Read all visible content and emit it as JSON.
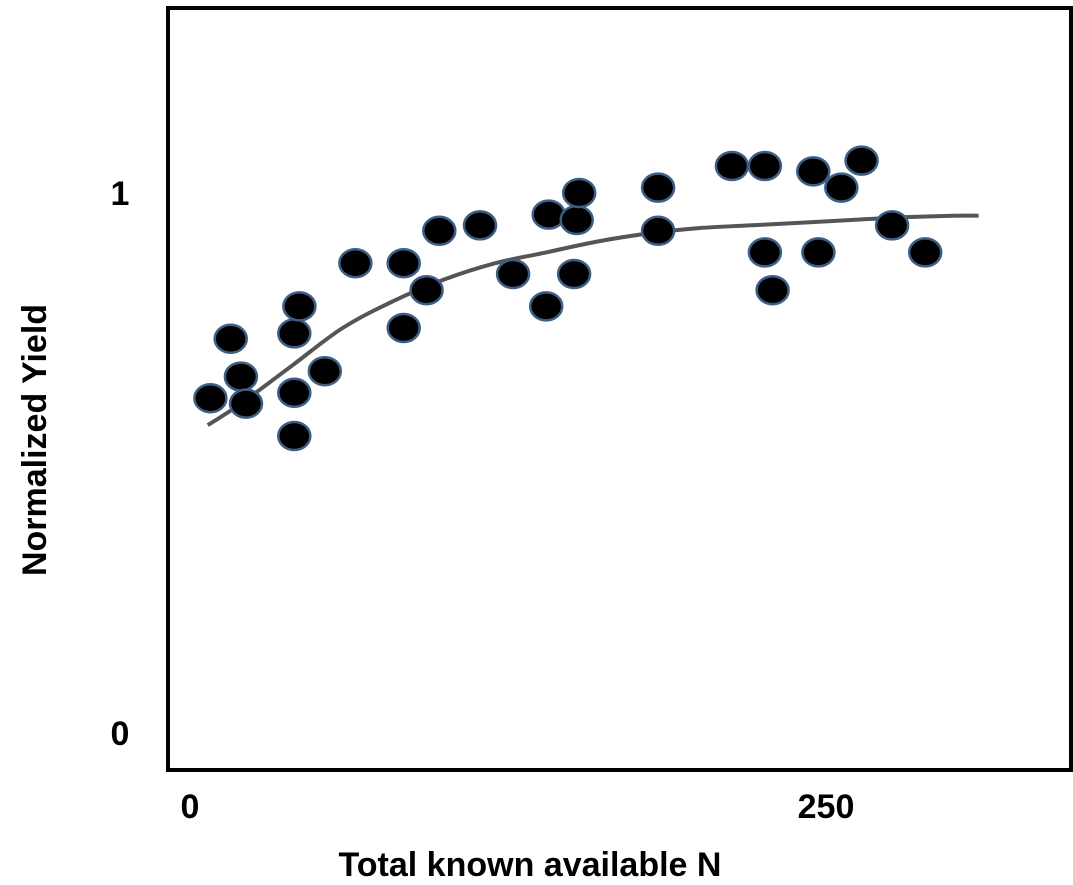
{
  "chart_data": {
    "type": "scatter",
    "title": "",
    "xlabel": "Total known available N",
    "ylabel": "Normalized Yield",
    "xlim": [
      0,
      350
    ],
    "ylim": [
      0,
      1.25
    ],
    "x_ticks": [
      {
        "value": 0,
        "label": "0"
      },
      {
        "value": 250,
        "label": "250"
      }
    ],
    "y_ticks": [
      {
        "value": 0,
        "label": "0"
      },
      {
        "value": 1,
        "label": "1"
      }
    ],
    "grid": false,
    "legend": "none",
    "colors": {
      "marker_fill": "#000000",
      "marker_stroke": "#3d5f86",
      "curve": "#555555",
      "axis": "#000000"
    },
    "series": [
      {
        "type": "scatter",
        "points": [
          {
            "x": 8,
            "y": 0.62
          },
          {
            "x": 16,
            "y": 0.73
          },
          {
            "x": 20,
            "y": 0.66
          },
          {
            "x": 22,
            "y": 0.61
          },
          {
            "x": 41,
            "y": 0.55
          },
          {
            "x": 41,
            "y": 0.63
          },
          {
            "x": 41,
            "y": 0.74
          },
          {
            "x": 43,
            "y": 0.79
          },
          {
            "x": 53,
            "y": 0.67
          },
          {
            "x": 65,
            "y": 0.87
          },
          {
            "x": 84,
            "y": 0.75
          },
          {
            "x": 84,
            "y": 0.87
          },
          {
            "x": 93,
            "y": 0.82
          },
          {
            "x": 98,
            "y": 0.93
          },
          {
            "x": 114,
            "y": 0.94
          },
          {
            "x": 127,
            "y": 0.85
          },
          {
            "x": 140,
            "y": 0.79
          },
          {
            "x": 141,
            "y": 0.96
          },
          {
            "x": 151,
            "y": 0.85
          },
          {
            "x": 152,
            "y": 0.95
          },
          {
            "x": 153,
            "y": 1.0
          },
          {
            "x": 184,
            "y": 1.01
          },
          {
            "x": 184,
            "y": 0.93
          },
          {
            "x": 213,
            "y": 1.05
          },
          {
            "x": 226,
            "y": 1.05
          },
          {
            "x": 226,
            "y": 0.89
          },
          {
            "x": 229,
            "y": 0.82
          },
          {
            "x": 245,
            "y": 1.04
          },
          {
            "x": 247,
            "y": 0.89
          },
          {
            "x": 256,
            "y": 1.01
          },
          {
            "x": 264,
            "y": 1.06
          },
          {
            "x": 276,
            "y": 0.94
          },
          {
            "x": 289,
            "y": 0.89
          }
        ]
      },
      {
        "type": "line",
        "curve": "fitted",
        "x": [
          7,
          20,
          40,
          60,
          80,
          100,
          120,
          140,
          160,
          180,
          200,
          220,
          240,
          260,
          280,
          300,
          310
        ],
        "y": [
          0.57,
          0.61,
          0.68,
          0.75,
          0.8,
          0.84,
          0.87,
          0.89,
          0.91,
          0.925,
          0.935,
          0.94,
          0.945,
          0.95,
          0.955,
          0.958,
          0.958
        ]
      }
    ]
  }
}
